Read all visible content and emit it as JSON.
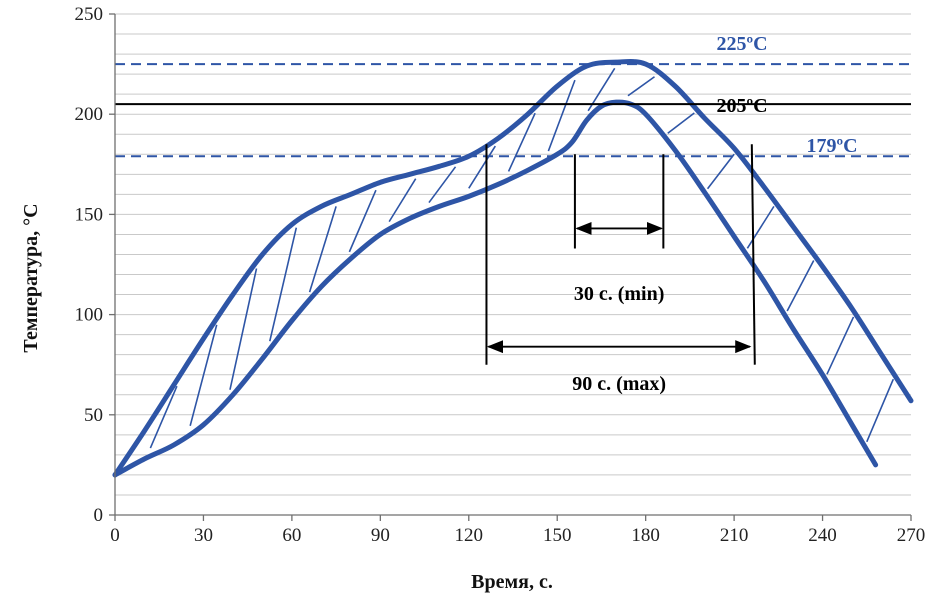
{
  "chart_data": {
    "type": "line",
    "xlabel": "Время, с.",
    "ylabel": "Температура, °C",
    "xlim": [
      0,
      270
    ],
    "ylim": [
      0,
      250
    ],
    "xticks": [
      0,
      30,
      60,
      90,
      120,
      150,
      180,
      210,
      240,
      270
    ],
    "yticks": [
      0,
      50,
      100,
      150,
      200,
      250
    ],
    "grid": "horizontal",
    "series": [
      {
        "role": "upper-bound",
        "color": "#2e55a6",
        "x": [
          0,
          10,
          20,
          30,
          40,
          50,
          60,
          70,
          80,
          90,
          100,
          110,
          120,
          130,
          140,
          150,
          160,
          170,
          180,
          190,
          200,
          210,
          220,
          230,
          240,
          250,
          260,
          270
        ],
        "y": [
          20,
          42,
          65,
          88,
          110,
          130,
          145,
          154,
          160,
          166,
          170,
          174,
          179,
          188,
          200,
          214,
          224,
          226,
          225,
          214,
          198,
          183,
          164,
          144,
          124,
          103,
          80,
          57
        ]
      },
      {
        "role": "lower-bound",
        "color": "#2e55a6",
        "x": [
          0,
          10,
          20,
          30,
          40,
          50,
          60,
          70,
          80,
          90,
          100,
          110,
          120,
          130,
          140,
          150,
          155,
          160,
          165,
          170,
          175,
          180,
          190,
          200,
          210,
          220,
          230,
          240,
          250,
          258
        ],
        "y": [
          20,
          28,
          35,
          45,
          60,
          78,
          97,
          114,
          128,
          140,
          148,
          154,
          159,
          165,
          172,
          180,
          186,
          197,
          204,
          206,
          205,
          200,
          182,
          161,
          139,
          117,
          93,
          70,
          45,
          25
        ]
      }
    ],
    "reference_lines": [
      {
        "y": 225,
        "label": "225ºC",
        "color": "#2e55a6",
        "style": "dashed"
      },
      {
        "y": 205,
        "label": "205ºC",
        "color": "#000000",
        "style": "solid"
      },
      {
        "y": 179,
        "label": "179ºC",
        "color": "#2e55a6",
        "style": "dashed"
      }
    ],
    "intervals": [
      {
        "x_start": 156,
        "x_end": 186,
        "label": "30 с. (min)"
      },
      {
        "x_start": 126,
        "x_end": 216,
        "label": "90 с. (max)"
      }
    ]
  }
}
